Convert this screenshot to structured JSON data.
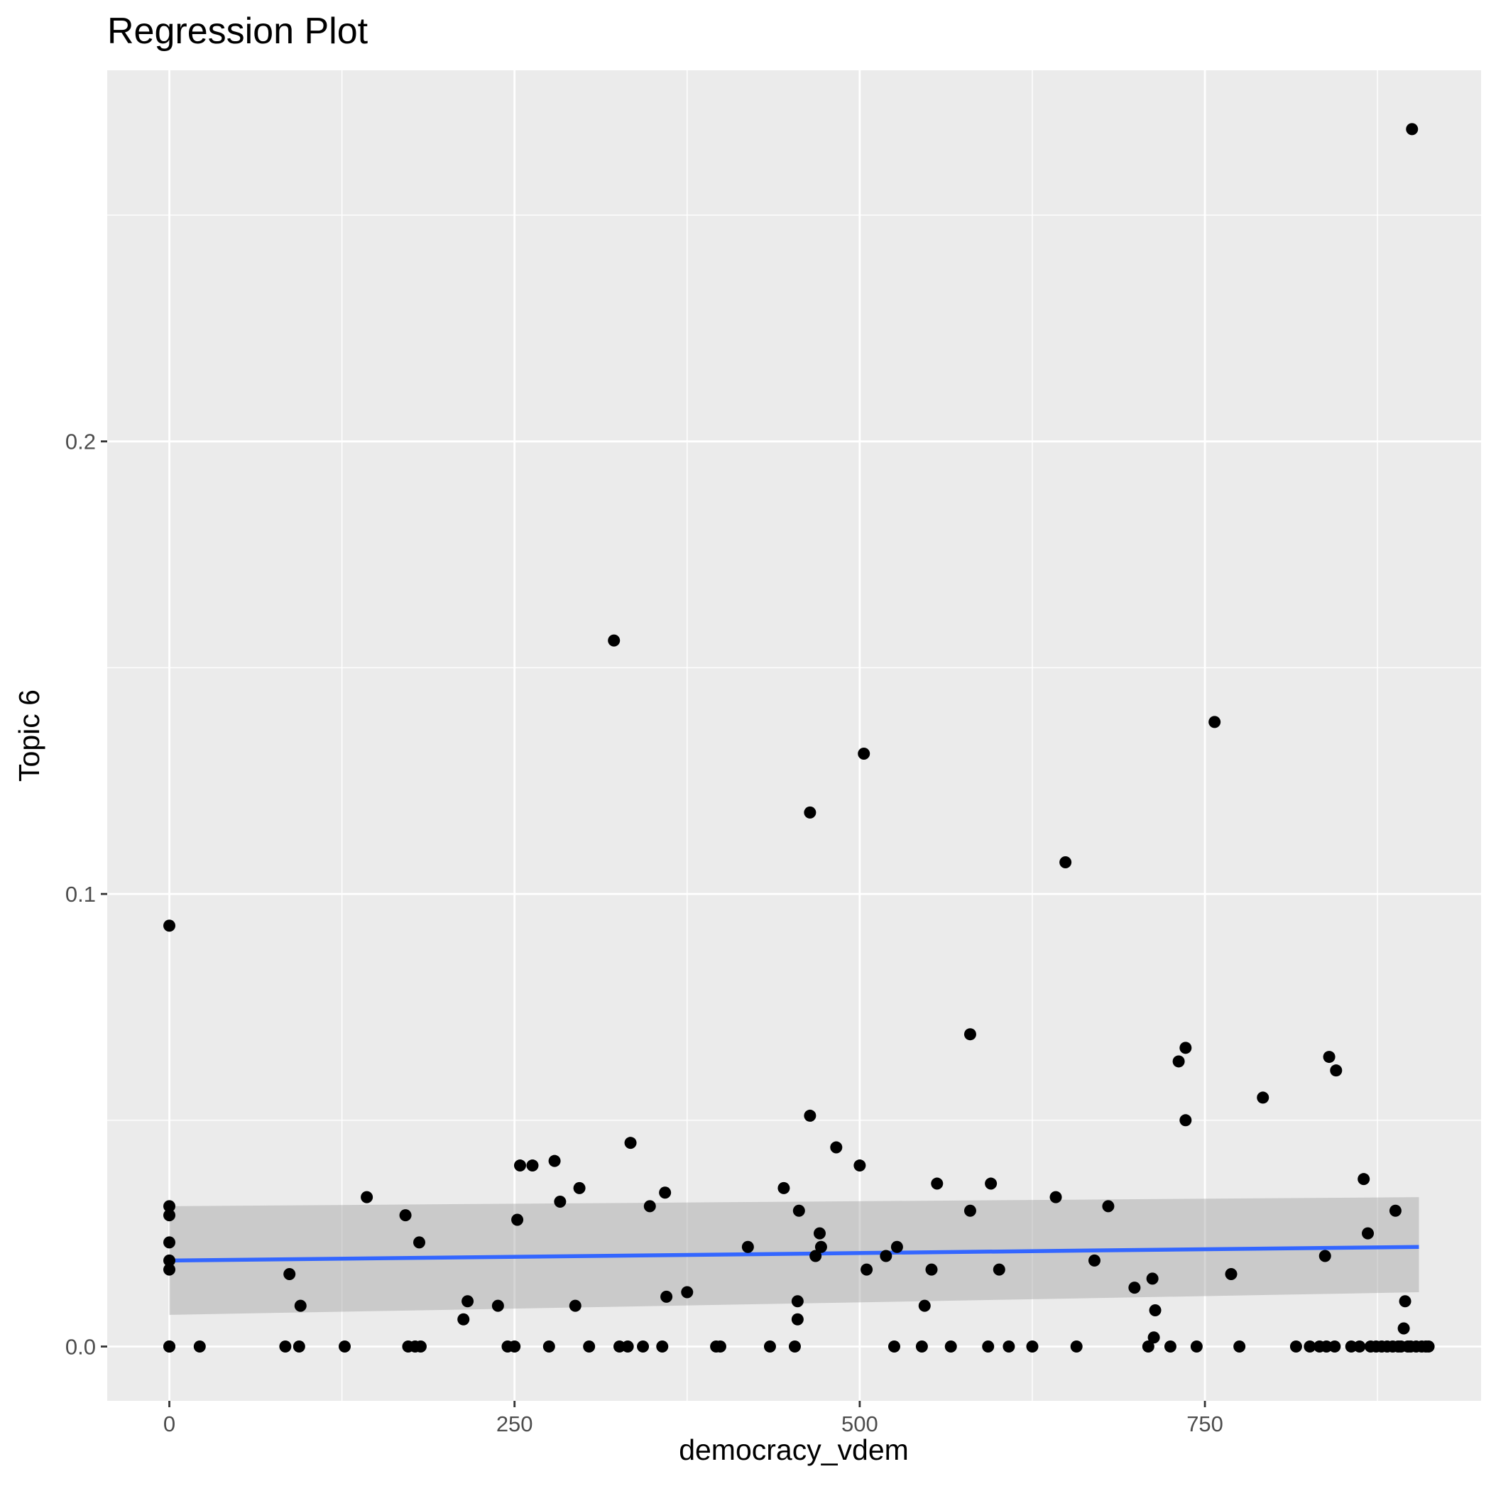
{
  "chart_data": {
    "type": "scatter",
    "title": "Regression Plot",
    "xlabel": "democracy_vdem",
    "ylabel": "Topic 6",
    "xlim": [
      -45,
      950
    ],
    "ylim": [
      -0.012,
      0.282
    ],
    "x_ticks": [
      0,
      250,
      500,
      750
    ],
    "x_tick_labels": [
      "0",
      "250",
      "500",
      "750"
    ],
    "x_minor_ticks": [
      125,
      375,
      625,
      875
    ],
    "y_ticks": [
      0.0,
      0.1,
      0.2
    ],
    "y_tick_labels": [
      "0.0",
      "0.1",
      "0.2"
    ],
    "y_minor_ticks": [
      0.05,
      0.15,
      0.25
    ],
    "grid": true,
    "legend": "none",
    "colors": {
      "panel": "#ebebeb",
      "grid": "#ffffff",
      "point": "#000000",
      "fit_line": "#3366ff",
      "ribbon": "#bfbfbf"
    },
    "points": [
      [
        0,
        0.093
      ],
      [
        0,
        0.031
      ],
      [
        0,
        0.029
      ],
      [
        0,
        0.023
      ],
      [
        0,
        0.019
      ],
      [
        0,
        0.017
      ],
      [
        0,
        0.0
      ],
      [
        0,
        0.0
      ],
      [
        22,
        0.0
      ],
      [
        84,
        0.0
      ],
      [
        87,
        0.016
      ],
      [
        94,
        0.0
      ],
      [
        95,
        0.009
      ],
      [
        127,
        0.0
      ],
      [
        143,
        0.033
      ],
      [
        171,
        0.029
      ],
      [
        173,
        0.0
      ],
      [
        178,
        0.0
      ],
      [
        181,
        0.023
      ],
      [
        182,
        0.0
      ],
      [
        213,
        0.006
      ],
      [
        216,
        0.01
      ],
      [
        238,
        0.009
      ],
      [
        245,
        0.0
      ],
      [
        250,
        0.0
      ],
      [
        252,
        0.028
      ],
      [
        254,
        0.04
      ],
      [
        263,
        0.04
      ],
      [
        275,
        0.0
      ],
      [
        279,
        0.041
      ],
      [
        283,
        0.032
      ],
      [
        294,
        0.009
      ],
      [
        297,
        0.035
      ],
      [
        304,
        0.0
      ],
      [
        322,
        0.156
      ],
      [
        326,
        0.0
      ],
      [
        332,
        0.0
      ],
      [
        334,
        0.045
      ],
      [
        343,
        0.0
      ],
      [
        348,
        0.031
      ],
      [
        357,
        0.0
      ],
      [
        359,
        0.034
      ],
      [
        360,
        0.011
      ],
      [
        375,
        0.012
      ],
      [
        396,
        0.0
      ],
      [
        399,
        0.0
      ],
      [
        419,
        0.022
      ],
      [
        435,
        0.0
      ],
      [
        445,
        0.035
      ],
      [
        453,
        0.0
      ],
      [
        455,
        0.006
      ],
      [
        455,
        0.01
      ],
      [
        456,
        0.03
      ],
      [
        464,
        0.051
      ],
      [
        464,
        0.118
      ],
      [
        468,
        0.02
      ],
      [
        471,
        0.025
      ],
      [
        472,
        0.022
      ],
      [
        483,
        0.044
      ],
      [
        500,
        0.04
      ],
      [
        503,
        0.131
      ],
      [
        505,
        0.017
      ],
      [
        519,
        0.02
      ],
      [
        525,
        0.0
      ],
      [
        527,
        0.022
      ],
      [
        545,
        0.0
      ],
      [
        547,
        0.009
      ],
      [
        552,
        0.017
      ],
      [
        556,
        0.036
      ],
      [
        566,
        0.0
      ],
      [
        580,
        0.069
      ],
      [
        580,
        0.03
      ],
      [
        593,
        0.0
      ],
      [
        595,
        0.036
      ],
      [
        601,
        0.017
      ],
      [
        608,
        0.0
      ],
      [
        625,
        0.0
      ],
      [
        642,
        0.033
      ],
      [
        649,
        0.107
      ],
      [
        657,
        0.0
      ],
      [
        670,
        0.019
      ],
      [
        680,
        0.031
      ],
      [
        699,
        0.013
      ],
      [
        709,
        0.0
      ],
      [
        712,
        0.015
      ],
      [
        713,
        0.002
      ],
      [
        714,
        0.008
      ],
      [
        725,
        0.0
      ],
      [
        731,
        0.063
      ],
      [
        736,
        0.066
      ],
      [
        736,
        0.05
      ],
      [
        744,
        0.0
      ],
      [
        757,
        0.138
      ],
      [
        769,
        0.016
      ],
      [
        775,
        0.0
      ],
      [
        792,
        0.055
      ],
      [
        816,
        0.0
      ],
      [
        826,
        0.0
      ],
      [
        833,
        0.0
      ],
      [
        837,
        0.02
      ],
      [
        838,
        0.0
      ],
      [
        840,
        0.064
      ],
      [
        844,
        0.0
      ],
      [
        845,
        0.061
      ],
      [
        856,
        0.0
      ],
      [
        862,
        0.0
      ],
      [
        865,
        0.037
      ],
      [
        868,
        0.025
      ],
      [
        870,
        0.0
      ],
      [
        874,
        0.0
      ],
      [
        878,
        0.0
      ],
      [
        882,
        0.0
      ],
      [
        886,
        0.0
      ],
      [
        888,
        0.03
      ],
      [
        890,
        0.0
      ],
      [
        892,
        0.0
      ],
      [
        894,
        0.004
      ],
      [
        895,
        0.01
      ],
      [
        897,
        0.0
      ],
      [
        899,
        0.0
      ],
      [
        900,
        0.269
      ],
      [
        903,
        0.0
      ],
      [
        907,
        0.0
      ],
      [
        910,
        0.0
      ],
      [
        912,
        0.0
      ]
    ],
    "fit_line": {
      "x": [
        0,
        905
      ],
      "y": [
        0.019,
        0.022
      ]
    },
    "confidence_band": {
      "x": [
        0,
        905
      ],
      "lower": [
        0.007,
        0.012
      ],
      "upper": [
        0.031,
        0.033
      ]
    }
  }
}
